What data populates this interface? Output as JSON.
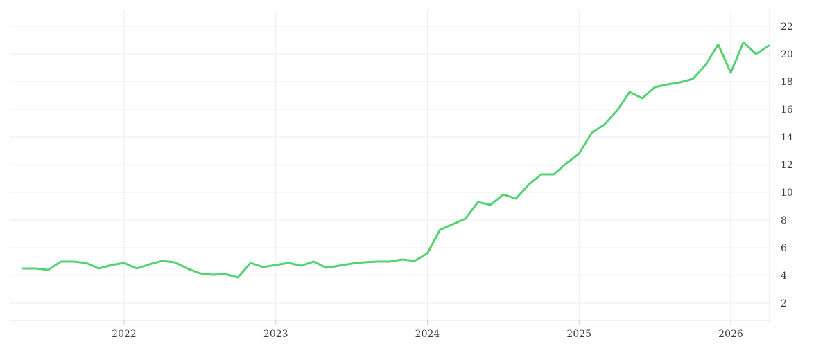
{
  "chart": {
    "background": "#ffffff",
    "line_color": "#54d273",
    "grid_color": "#ededed",
    "axis_color": "#e2e2e2",
    "tick_color": "#cfcfcf",
    "label_color": "#3d3d3d"
  },
  "chart_data": {
    "type": "line",
    "title": "",
    "xlabel": "",
    "ylabel": "",
    "legend": false,
    "grid": true,
    "y_axis_side": "right",
    "x_ticks": [
      2022,
      2023,
      2024,
      2025,
      2026
    ],
    "x_tick_labels": [
      "2022",
      "2023",
      "2024",
      "2025",
      "2026"
    ],
    "y_ticks": [
      2,
      4,
      6,
      8,
      10,
      12,
      14,
      16,
      18,
      20,
      22
    ],
    "y_tick_labels": [
      "2",
      "4",
      "6",
      "8",
      "10",
      "12",
      "14",
      "16",
      "18",
      "20",
      "22"
    ],
    "xlim": [
      2021.18,
      2026.26
    ],
    "ylim_gridlines": [
      2,
      22
    ],
    "x_start_year": 2021.3333,
    "x_step_years": 0.0833333,
    "series": [
      {
        "name": "value",
        "color": "#54d273",
        "start_month": "2021-05",
        "end_month": "2026-04",
        "values": [
          4.5,
          4.5,
          4.4,
          5.0,
          5.0,
          4.9,
          4.5,
          4.75,
          4.9,
          4.5,
          4.8,
          5.05,
          4.95,
          4.5,
          4.15,
          4.05,
          4.1,
          3.85,
          4.9,
          4.6,
          4.75,
          4.9,
          4.7,
          5.0,
          4.55,
          4.7,
          4.85,
          4.95,
          5.0,
          5.0,
          5.15,
          5.05,
          5.6,
          7.3,
          7.7,
          8.1,
          9.3,
          9.1,
          9.85,
          9.55,
          10.55,
          11.3,
          11.3,
          12.1,
          12.8,
          14.3,
          14.9,
          15.9,
          17.25,
          16.8,
          17.6,
          17.8,
          17.95,
          18.2,
          19.2,
          20.7,
          18.65,
          20.85,
          20.0,
          20.6
        ]
      }
    ]
  }
}
